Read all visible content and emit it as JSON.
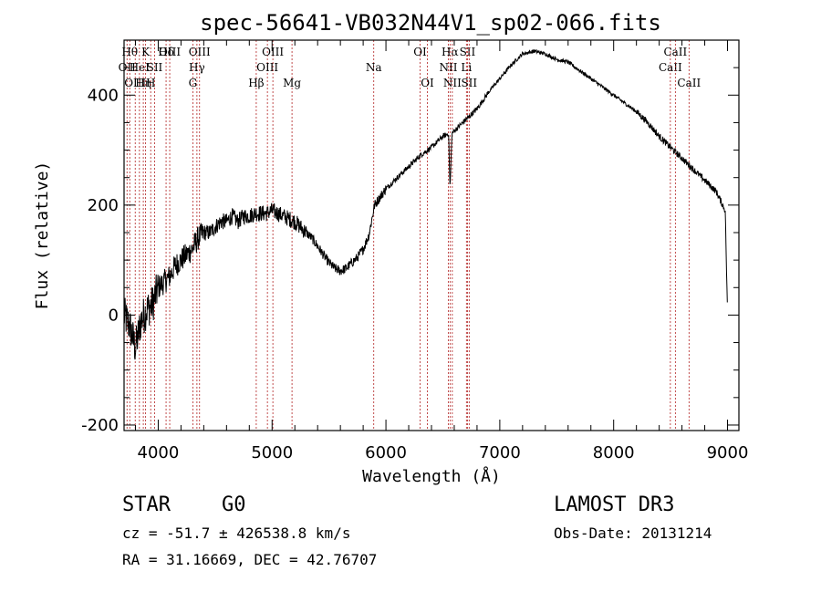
{
  "chart_data": {
    "type": "line",
    "title": "spec-56641-VB032N44V1_sp02-066.fits",
    "xlabel": "Wavelength (Å)",
    "ylabel": "Flux (relative)",
    "xlim": [
      3700,
      9100
    ],
    "ylim": [
      -210,
      500
    ],
    "xticks": [
      4000,
      5000,
      6000,
      7000,
      8000,
      9000
    ],
    "yticks": [
      -200,
      0,
      200,
      400
    ],
    "line_color": "#000000",
    "marker_color": "#b22222",
    "series": [
      {
        "name": "spectrum",
        "x": [
          3700,
          3750,
          3800,
          3850,
          3900,
          3950,
          4000,
          4050,
          4100,
          4150,
          4200,
          4250,
          4300,
          4350,
          4400,
          4450,
          4500,
          4550,
          4600,
          4650,
          4700,
          4750,
          4800,
          4850,
          4900,
          4950,
          5000,
          5050,
          5100,
          5150,
          5200,
          5250,
          5300,
          5350,
          5400,
          5450,
          5500,
          5550,
          5600,
          5650,
          5700,
          5750,
          5800,
          5850,
          5900,
          5950,
          6000,
          6100,
          6200,
          6300,
          6400,
          6500,
          6550,
          6563,
          6580,
          6600,
          6700,
          6800,
          6900,
          7000,
          7100,
          7200,
          7300,
          7400,
          7500,
          7600,
          7700,
          7800,
          7900,
          8000,
          8100,
          8200,
          8300,
          8400,
          8500,
          8600,
          8700,
          8800,
          8900,
          8980,
          9000
        ],
        "y": [
          0,
          -20,
          -60,
          -10,
          10,
          20,
          50,
          60,
          70,
          90,
          100,
          110,
          120,
          140,
          150,
          150,
          160,
          170,
          170,
          180,
          170,
          180,
          180,
          185,
          185,
          185,
          190,
          185,
          180,
          175,
          170,
          160,
          150,
          140,
          125,
          110,
          95,
          85,
          80,
          85,
          95,
          105,
          120,
          145,
          200,
          215,
          230,
          250,
          270,
          290,
          305,
          325,
          330,
          230,
          330,
          335,
          355,
          375,
          405,
          430,
          455,
          475,
          480,
          475,
          465,
          460,
          445,
          430,
          415,
          400,
          385,
          370,
          350,
          325,
          305,
          285,
          265,
          245,
          225,
          190,
          0
        ]
      }
    ],
    "line_markers": [
      {
        "wave": 3726,
        "label": "OII",
        "row": 2
      },
      {
        "wave": 3750,
        "label": "Hθ",
        "row": 1
      },
      {
        "wave": 3798,
        "label": "OIII",
        "row": 3
      },
      {
        "wave": 3835,
        "label": "HeI",
        "row": 2
      },
      {
        "wave": 3869,
        "label": "Hη",
        "row": 3
      },
      {
        "wave": 3889,
        "label": "K",
        "row": 1
      },
      {
        "wave": 3934,
        "label": "H",
        "row": 3
      },
      {
        "wave": 3968,
        "label": "SII",
        "row": 2
      },
      {
        "wave": 4069,
        "label": "Hδ",
        "row": 1
      },
      {
        "wave": 4101,
        "label": "OIII",
        "row": 1
      },
      {
        "wave": 4304,
        "label": "G",
        "row": 3
      },
      {
        "wave": 4340,
        "label": "Hγ",
        "row": 2
      },
      {
        "wave": 4363,
        "label": "OIII",
        "row": 1
      },
      {
        "wave": 4861,
        "label": "Hβ",
        "row": 3
      },
      {
        "wave": 4959,
        "label": "OIII",
        "row": 2
      },
      {
        "wave": 5007,
        "label": "OIII",
        "row": 1
      },
      {
        "wave": 5175,
        "label": "Mg",
        "row": 3
      },
      {
        "wave": 5893,
        "label": "Na",
        "row": 2
      },
      {
        "wave": 6300,
        "label": "OI",
        "row": 1
      },
      {
        "wave": 6364,
        "label": "OI",
        "row": 3
      },
      {
        "wave": 6548,
        "label": "NII",
        "row": 2
      },
      {
        "wave": 6563,
        "label": "Hα",
        "row": 1
      },
      {
        "wave": 6583,
        "label": "NII",
        "row": 3
      },
      {
        "wave": 6707,
        "label": "Li",
        "row": 2
      },
      {
        "wave": 6716,
        "label": "SII",
        "row": 1
      },
      {
        "wave": 6731,
        "label": "SII",
        "row": 3
      },
      {
        "wave": 8498,
        "label": "CaII",
        "row": 2
      },
      {
        "wave": 8542,
        "label": "CaII",
        "row": 1
      },
      {
        "wave": 8662,
        "label": "CaII",
        "row": 3
      }
    ]
  },
  "footer": {
    "object_class": "STAR",
    "subclass": "G0",
    "survey": "LAMOST DR3",
    "cz": "cz = -51.7 ± 426538.8 km/s",
    "obs_date": "Obs-Date: 20131214",
    "coords": "RA =  31.16669, DEC =  42.76707"
  }
}
